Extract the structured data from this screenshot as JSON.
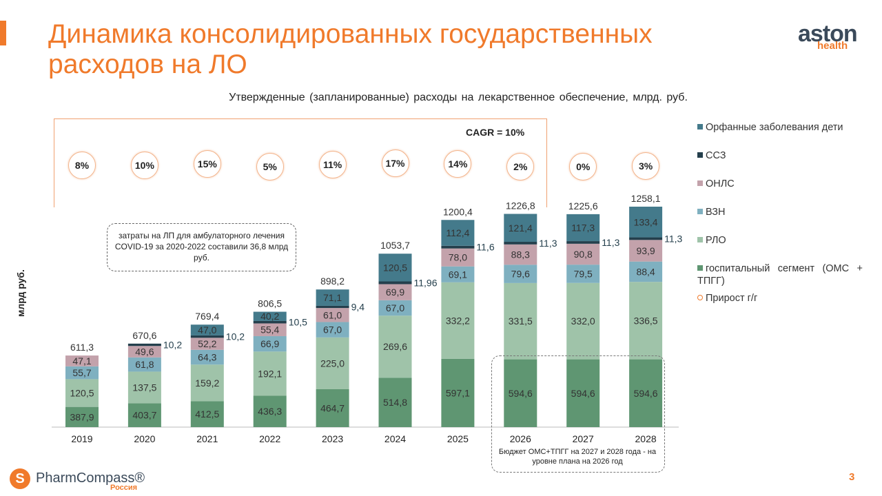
{
  "title": "Динамика консолидированных государственных расходов на ЛО",
  "logo": {
    "brand": "aston",
    "sub": "health"
  },
  "footer": {
    "brand": "PharmCompass®",
    "region": "Россия",
    "page": "3"
  },
  "notes": {
    "covid": "затраты на ЛП для амбулаторного лечения COVID-19 за 2020-2022 составили 36,8 млрд руб.",
    "budget": "Бюджет ОМС+ТПГГ на 2027 и 2028 года - на уровне плана на 2026 год"
  },
  "chart_data": {
    "type": "bar",
    "stacked": true,
    "title": "Утвержденные (запланированные) расходы на лекарственное обеспечение, млрд. руб.",
    "ylabel": "млрд руб.",
    "cagr_label": "CAGR = 10%",
    "categories": [
      "2019",
      "2020",
      "2021",
      "2022",
      "2023",
      "2024",
      "2025",
      "2026",
      "2027",
      "2028"
    ],
    "series": [
      {
        "name": "госпитальный сегмент (ОМС + ТПГГ)",
        "color": "#5f9672",
        "values": [
          "387,9",
          "403,7",
          "412,5",
          "436,3",
          "464,7",
          "514,8",
          "597,1",
          "594,6",
          "594,6",
          "594,6"
        ]
      },
      {
        "name": "РЛО",
        "color": "#9fc3a9",
        "values": [
          "120,5",
          "137,5",
          "159,2",
          "192,1",
          "225,0",
          "269,6",
          "332,2",
          "331,5",
          "332,0",
          "336,5"
        ]
      },
      {
        "name": "ВЗН",
        "color": "#7fb0c0",
        "values": [
          "55,7",
          "61,8",
          "64,3",
          "66,9",
          "67,0",
          "67,0",
          "69,1",
          "79,6",
          "79,5",
          "88,4"
        ]
      },
      {
        "name": "ОНЛС",
        "color": "#c3a2ab",
        "values": [
          "47,1",
          "49,6",
          "52,2",
          "55,4",
          "61,0",
          "69,9",
          "78,0",
          "88,3",
          "90,8",
          "93,9"
        ]
      },
      {
        "name": "ССЗ",
        "color": "#243f4c",
        "values": [
          null,
          "10,2",
          "10,2",
          "10,5",
          "9,4",
          "11,96",
          "11,6",
          "11,3",
          "11,3",
          "11,3"
        ]
      },
      {
        "name": "Орфанные заболевания дети",
        "color": "#447a8b",
        "values": [
          null,
          null,
          "47,0",
          "40,2",
          "71,1",
          "120,5",
          "112,4",
          "121,4",
          "117,3",
          "133,4"
        ]
      }
    ],
    "totals": [
      "611,3",
      "670,6",
      "769,4",
      "806,5",
      "898,2",
      "1053,7",
      "1200,4",
      "1226,8",
      "1225,6",
      "1258,1"
    ],
    "growth": {
      "name": "Прирост г/г",
      "values": [
        "8%",
        "10%",
        "15%",
        "5%",
        "11%",
        "17%",
        "14%",
        "2%",
        "0%",
        "3%"
      ]
    }
  }
}
